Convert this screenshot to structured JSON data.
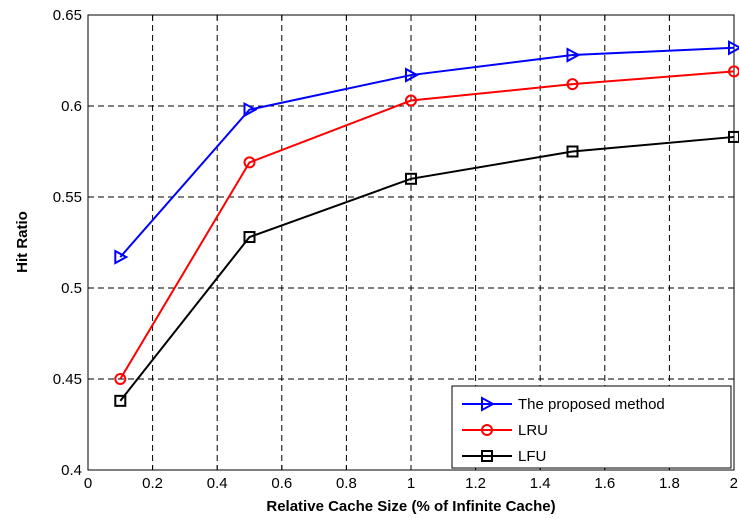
{
  "chart_data": {
    "type": "line",
    "xlabel": "Relative Cache Size (% of Infinite Cache)",
    "ylabel": "Hit Ratio",
    "xlim": [
      0,
      2
    ],
    "ylim": [
      0.4,
      0.65
    ],
    "xticks": [
      "0",
      "0.2",
      "0.4",
      "0.6",
      "0.8",
      "1",
      "1.2",
      "1.4",
      "1.6",
      "1.8",
      "2"
    ],
    "yticks": [
      "0.4",
      "0.45",
      "0.5",
      "0.55",
      "0.6",
      "0.65"
    ],
    "grid": true,
    "legend_position": "bottom-right",
    "series": [
      {
        "name": "The proposed method",
        "color": "#0000ff",
        "marker": "triangle-right",
        "x": [
          0.1,
          0.5,
          1.0,
          1.5,
          2.0
        ],
        "y": [
          0.517,
          0.598,
          0.617,
          0.628,
          0.632
        ]
      },
      {
        "name": "LRU",
        "color": "#ff0000",
        "marker": "circle",
        "x": [
          0.1,
          0.5,
          1.0,
          1.5,
          2.0
        ],
        "y": [
          0.45,
          0.569,
          0.603,
          0.612,
          0.619
        ]
      },
      {
        "name": "LFU",
        "color": "#000000",
        "marker": "square",
        "x": [
          0.1,
          0.5,
          1.0,
          1.5,
          2.0
        ],
        "y": [
          0.438,
          0.528,
          0.56,
          0.575,
          0.583
        ]
      }
    ]
  }
}
